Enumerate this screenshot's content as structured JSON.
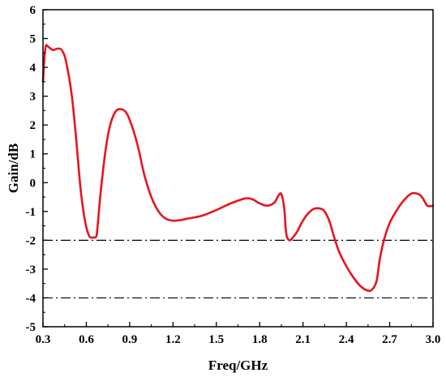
{
  "chart_data": {
    "type": "line",
    "xlabel": "Freq/GHz",
    "ylabel": "Gain/dB",
    "xlim": [
      0.3,
      3.0
    ],
    "ylim": [
      -5,
      6
    ],
    "x_ticks": [
      "0.3",
      "0.6",
      "0.9",
      "1.2",
      "1.5",
      "1.8",
      "2.1",
      "2.4",
      "2.7",
      "3.0"
    ],
    "y_ticks": [
      "-5",
      "-4",
      "-3",
      "-2",
      "-1",
      "0",
      "1",
      "2",
      "3",
      "4",
      "5",
      "6"
    ],
    "grid": false,
    "series": [
      {
        "color": "#e8141c",
        "x": [
          0.3,
          0.31,
          0.32,
          0.34,
          0.37,
          0.4,
          0.43,
          0.46,
          0.5,
          0.53,
          0.56,
          0.59,
          0.62,
          0.65,
          0.67,
          0.68,
          0.7,
          0.73,
          0.76,
          0.8,
          0.84,
          0.88,
          0.92,
          0.96,
          1.0,
          1.05,
          1.1,
          1.15,
          1.2,
          1.25,
          1.3,
          1.4,
          1.5,
          1.6,
          1.7,
          1.75,
          1.8,
          1.85,
          1.9,
          1.93,
          1.95,
          1.97,
          1.98,
          1.99,
          2.01,
          2.03,
          2.06,
          2.09,
          2.13,
          2.18,
          2.24,
          2.28,
          2.31,
          2.35,
          2.4,
          2.45,
          2.5,
          2.55,
          2.58,
          2.61,
          2.63,
          2.66,
          2.7,
          2.75,
          2.8,
          2.85,
          2.9,
          2.93,
          2.96,
          3.0
        ],
        "y": [
          3.5,
          4.3,
          4.75,
          4.7,
          4.6,
          4.65,
          4.6,
          4.2,
          3.0,
          1.5,
          -0.2,
          -1.3,
          -1.85,
          -1.9,
          -1.85,
          -1.4,
          -0.3,
          1.0,
          1.9,
          2.45,
          2.55,
          2.4,
          1.9,
          1.2,
          0.3,
          -0.5,
          -1.0,
          -1.25,
          -1.32,
          -1.3,
          -1.25,
          -1.15,
          -0.95,
          -0.72,
          -0.55,
          -0.58,
          -0.72,
          -0.8,
          -0.7,
          -0.45,
          -0.4,
          -0.9,
          -1.6,
          -1.9,
          -2.0,
          -1.9,
          -1.7,
          -1.4,
          -1.1,
          -0.9,
          -0.95,
          -1.3,
          -1.8,
          -2.4,
          -2.9,
          -3.3,
          -3.6,
          -3.75,
          -3.7,
          -3.4,
          -2.7,
          -2.0,
          -1.4,
          -0.95,
          -0.6,
          -0.38,
          -0.4,
          -0.55,
          -0.8,
          -0.8
        ]
      }
    ],
    "reference_lines": [
      {
        "y": -2,
        "style": "dash-dot",
        "color": "#000000"
      },
      {
        "y": -4,
        "style": "dash-dot",
        "color": "#000000"
      }
    ]
  }
}
